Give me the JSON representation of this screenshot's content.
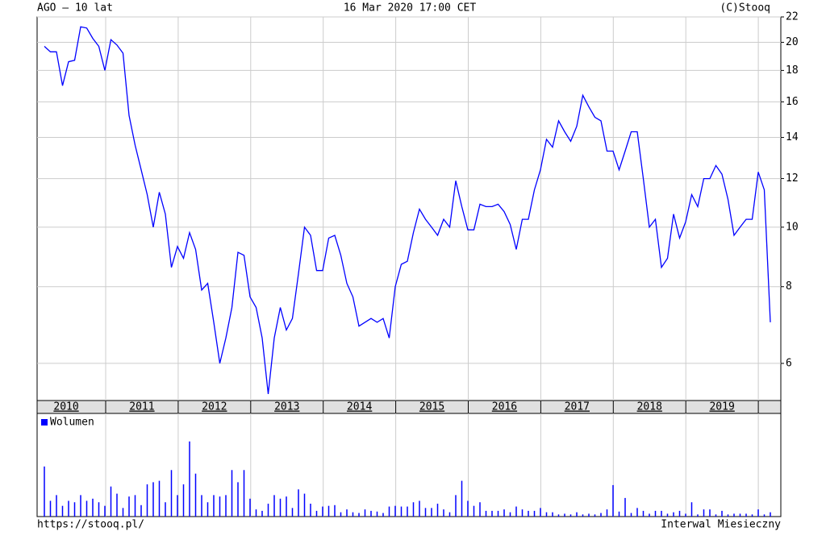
{
  "header": {
    "left": "AGO – 10 lat",
    "center": "16 Mar 2020 17:00 CET",
    "right": "(C)Stooq"
  },
  "footer": {
    "left": "https://stooq.pl/",
    "right": "Interwal Miesieczny"
  },
  "chart_data": [
    {
      "type": "line",
      "color": "#0000ff",
      "log_scale": true,
      "grid": true,
      "ylim": [
        5.22,
        22
      ],
      "yticks": [
        6,
        8,
        10,
        12,
        14,
        16,
        18,
        20,
        22
      ],
      "year_labels": [
        "2010",
        "2011",
        "2012",
        "2013",
        "2014",
        "2015",
        "2016",
        "2017",
        "2018",
        "2019"
      ],
      "values": [
        19.7,
        19.3,
        19.3,
        17.0,
        18.6,
        18.7,
        21.2,
        21.1,
        20.3,
        19.7,
        18.0,
        20.2,
        19.8,
        19.2,
        15.2,
        13.6,
        12.4,
        11.3,
        10.0,
        11.4,
        10.5,
        8.6,
        9.3,
        8.9,
        9.8,
        9.2,
        7.9,
        8.1,
        7.0,
        6.0,
        6.6,
        7.4,
        9.1,
        9.0,
        7.7,
        7.4,
        6.6,
        5.35,
        6.6,
        7.4,
        6.8,
        7.1,
        8.4,
        10.0,
        9.7,
        8.5,
        8.5,
        9.6,
        9.7,
        9.0,
        8.1,
        7.7,
        6.9,
        7.0,
        7.1,
        7.0,
        7.1,
        6.6,
        8.0,
        8.7,
        8.8,
        9.8,
        10.7,
        10.3,
        10.0,
        9.7,
        10.3,
        10.0,
        11.9,
        10.8,
        9.9,
        9.9,
        10.9,
        10.8,
        10.8,
        10.9,
        10.6,
        10.1,
        9.2,
        10.3,
        10.3,
        11.5,
        12.4,
        13.9,
        13.5,
        14.9,
        14.3,
        13.8,
        14.6,
        16.4,
        15.7,
        15.1,
        14.9,
        13.3,
        13.3,
        12.4,
        13.3,
        14.3,
        14.3,
        12.0,
        10.0,
        10.3,
        8.6,
        8.9,
        10.5,
        9.6,
        10.2,
        11.3,
        10.8,
        12.0,
        12.0,
        12.6,
        12.2,
        11.1,
        9.7,
        10.0,
        10.3,
        10.3,
        12.3,
        11.5,
        7.0
      ]
    },
    {
      "type": "bar",
      "color": "#0000ff",
      "legend": "Wolumen",
      "ylim": [
        0,
        125
      ],
      "values": [
        70,
        22,
        30,
        15,
        22,
        20,
        30,
        22,
        25,
        20,
        15,
        42,
        32,
        12,
        28,
        30,
        16,
        45,
        48,
        50,
        20,
        65,
        30,
        45,
        105,
        60,
        30,
        20,
        30,
        28,
        30,
        65,
        48,
        65,
        25,
        10,
        8,
        18,
        30,
        25,
        28,
        12,
        38,
        32,
        18,
        8,
        14,
        15,
        16,
        6,
        10,
        6,
        5,
        10,
        8,
        7,
        5,
        14,
        15,
        14,
        14,
        20,
        22,
        12,
        12,
        18,
        10,
        6,
        30,
        50,
        22,
        15,
        20,
        8,
        8,
        8,
        10,
        6,
        14,
        10,
        8,
        8,
        12,
        6,
        6,
        3,
        4,
        3,
        6,
        3,
        4,
        3,
        5,
        10,
        44,
        7,
        26,
        5,
        12,
        8,
        4,
        8,
        8,
        4,
        6,
        8,
        4,
        20,
        3,
        10,
        10,
        3,
        8,
        3,
        4,
        4,
        4,
        3,
        10,
        3,
        6
      ]
    }
  ]
}
